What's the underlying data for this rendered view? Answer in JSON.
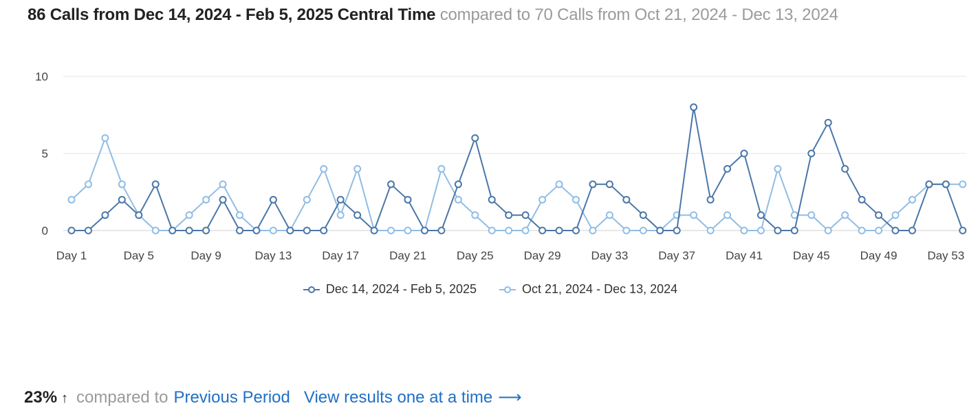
{
  "header": {
    "primary_text": "86 Calls from Dec 14, 2024 - Feb 5, 2025 Central Time",
    "secondary_text": "compared to 70 Calls from Oct 21, 2024 - Dec 13, 2024"
  },
  "footer": {
    "percent": "23%",
    "arrow": "↑",
    "compared_text": "compared to",
    "previous_link": "Previous Period",
    "view_link": "View results one at a time",
    "view_arrow": "⟶"
  },
  "colors": {
    "current_series": "#4a76a8",
    "previous_series": "#8fbde6",
    "grid": "#e6e6e6",
    "axis_text": "#444444",
    "link": "#1f6fc5"
  },
  "chart_data": {
    "type": "line",
    "x": [
      "Day 1",
      "Day 2",
      "Day 3",
      "Day 4",
      "Day 5",
      "Day 6",
      "Day 7",
      "Day 8",
      "Day 9",
      "Day 10",
      "Day 11",
      "Day 12",
      "Day 13",
      "Day 14",
      "Day 15",
      "Day 16",
      "Day 17",
      "Day 18",
      "Day 19",
      "Day 20",
      "Day 21",
      "Day 22",
      "Day 23",
      "Day 24",
      "Day 25",
      "Day 26",
      "Day 27",
      "Day 28",
      "Day 29",
      "Day 30",
      "Day 31",
      "Day 32",
      "Day 33",
      "Day 34",
      "Day 35",
      "Day 36",
      "Day 37",
      "Day 38",
      "Day 39",
      "Day 40",
      "Day 41",
      "Day 42",
      "Day 43",
      "Day 44",
      "Day 45",
      "Day 46",
      "Day 47",
      "Day 48",
      "Day 49",
      "Day 50",
      "Day 51",
      "Day 52",
      "Day 53",
      "Day 54"
    ],
    "x_tick_labels": [
      "Day 1",
      "Day 5",
      "Day 9",
      "Day 13",
      "Day 17",
      "Day 21",
      "Day 25",
      "Day 29",
      "Day 33",
      "Day 37",
      "Day 41",
      "Day 45",
      "Day 49",
      "Day 53"
    ],
    "y_ticks": [
      0,
      5,
      10
    ],
    "ylim": [
      0,
      10
    ],
    "grid": true,
    "legend_position": "bottom-center",
    "series": [
      {
        "name": "Dec 14, 2024 - Feb 5, 2025",
        "values": [
          0,
          0,
          1,
          2,
          1,
          3,
          0,
          0,
          0,
          2,
          0,
          0,
          2,
          0,
          0,
          0,
          2,
          1,
          0,
          3,
          2,
          0,
          0,
          3,
          6,
          2,
          1,
          1,
          0,
          0,
          0,
          3,
          3,
          2,
          1,
          0,
          0,
          8,
          2,
          4,
          5,
          1,
          0,
          0,
          5,
          7,
          4,
          2,
          1,
          0,
          0,
          3,
          3,
          0
        ]
      },
      {
        "name": "Oct 21, 2024 - Dec 13, 2024",
        "values": [
          2,
          3,
          6,
          3,
          1,
          0,
          0,
          1,
          2,
          3,
          1,
          0,
          0,
          0,
          2,
          4,
          1,
          4,
          0,
          0,
          0,
          0,
          4,
          2,
          1,
          0,
          0,
          0,
          2,
          3,
          2,
          0,
          1,
          0,
          0,
          0,
          1,
          1,
          0,
          1,
          0,
          0,
          4,
          1,
          1,
          0,
          1,
          0,
          0,
          1,
          2,
          3,
          3,
          3
        ]
      }
    ]
  }
}
